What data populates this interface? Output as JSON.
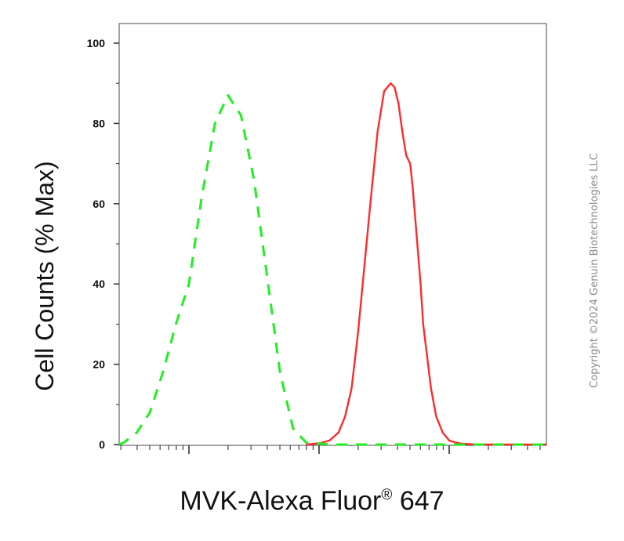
{
  "chart_data": {
    "type": "line",
    "title": "",
    "ylabel": "Cell Counts (% Max)",
    "xlabel_main": "MVK-Alexa Fluor",
    "xlabel_sup": "®",
    "xlabel_tail": " 647",
    "xscale": "log",
    "xlim_decades": [
      0,
      5.3
    ],
    "ylim": [
      0,
      100
    ],
    "y_ticks": [
      0,
      20,
      40,
      60,
      80,
      100
    ],
    "grid": false,
    "series": [
      {
        "color": "#ff2a2a",
        "style": "solid",
        "x": [
          1.9,
          2.0,
          2.08,
          2.15,
          2.2,
          2.25,
          2.3,
          2.35,
          2.4,
          2.45,
          2.5,
          2.55,
          2.58,
          2.61,
          2.64,
          2.67,
          2.7,
          2.72,
          2.75,
          2.78,
          2.8,
          2.83,
          2.86,
          2.9,
          2.95,
          3.0,
          3.05,
          3.1,
          3.2,
          3.4,
          3.6,
          4.0,
          5.3
        ],
        "y": [
          0,
          0.3,
          1,
          3,
          7,
          14,
          28,
          45,
          62,
          78,
          88,
          90,
          89,
          85,
          78,
          72,
          70,
          64,
          52,
          40,
          30,
          22,
          14,
          7,
          3,
          1,
          0.5,
          0.2,
          0,
          0,
          0,
          0,
          0
        ]
      },
      {
        "color": "#22ee22",
        "style": "dashed",
        "x": [
          0,
          0.3,
          0.5,
          0.6,
          0.7,
          0.8,
          0.9,
          1.0,
          1.1,
          1.2,
          1.3,
          1.4,
          1.5,
          1.6,
          1.7,
          1.8,
          1.9,
          2.1,
          2.5,
          3.0,
          3.5,
          4.0,
          5.3
        ],
        "y": [
          0,
          0,
          0.5,
          3,
          8,
          18,
          30,
          40,
          62,
          80,
          87,
          82,
          66,
          42,
          18,
          4,
          0.5,
          0,
          0,
          0,
          0,
          0,
          0
        ]
      }
    ]
  },
  "watermark": "Copyright ©2024 Genuin Biotechnologies LLC"
}
